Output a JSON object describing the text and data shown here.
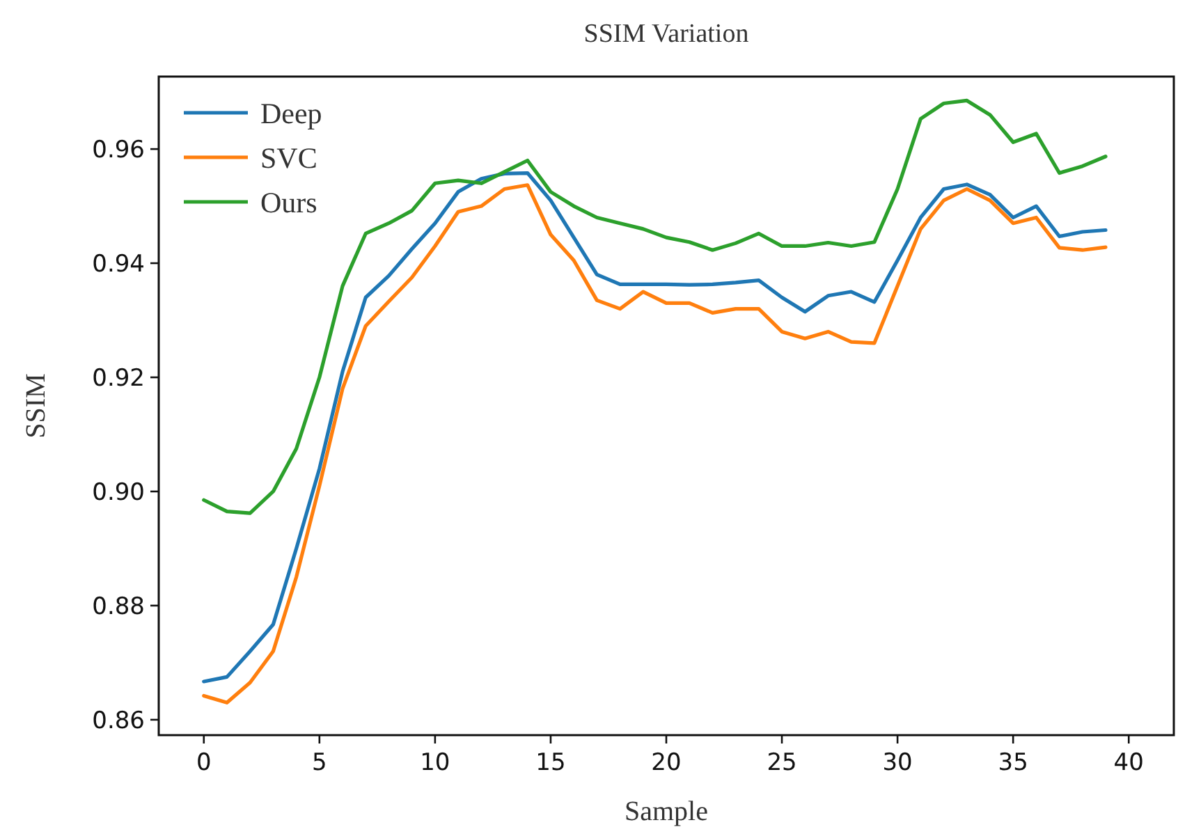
{
  "chart_data": {
    "type": "line",
    "title": "SSIM Variation",
    "xlabel": "Sample",
    "ylabel": "SSIM",
    "x": [
      0,
      1,
      2,
      3,
      4,
      5,
      6,
      7,
      8,
      9,
      10,
      11,
      12,
      13,
      14,
      15,
      16,
      17,
      18,
      19,
      20,
      21,
      22,
      23,
      24,
      25,
      26,
      27,
      28,
      29,
      30,
      31,
      32,
      33,
      34,
      35,
      36,
      37,
      38,
      39
    ],
    "series": [
      {
        "name": "Deep",
        "color": "#1f77b4",
        "values": [
          0.8667,
          0.8675,
          0.872,
          0.8767,
          0.89,
          0.904,
          0.921,
          0.934,
          0.9378,
          0.9425,
          0.947,
          0.9525,
          0.9548,
          0.9557,
          0.9558,
          0.951,
          0.9445,
          0.938,
          0.9363,
          0.9363,
          0.9363,
          0.9362,
          0.9363,
          0.9366,
          0.937,
          0.934,
          0.9315,
          0.9343,
          0.935,
          0.9332,
          0.9405,
          0.948,
          0.953,
          0.9538,
          0.952,
          0.948,
          0.95,
          0.9447,
          0.9455,
          0.9458
        ]
      },
      {
        "name": "SVC",
        "color": "#ff7f0e",
        "values": [
          0.8642,
          0.863,
          0.8665,
          0.872,
          0.885,
          0.901,
          0.918,
          0.929,
          0.9333,
          0.9375,
          0.943,
          0.949,
          0.95,
          0.953,
          0.9537,
          0.945,
          0.9405,
          0.9335,
          0.932,
          0.935,
          0.933,
          0.933,
          0.9313,
          0.932,
          0.932,
          0.928,
          0.9268,
          0.928,
          0.9262,
          0.926,
          0.936,
          0.946,
          0.951,
          0.953,
          0.951,
          0.947,
          0.948,
          0.9427,
          0.9423,
          0.9428
        ]
      },
      {
        "name": "Ours",
        "color": "#2ca02c",
        "values": [
          0.8985,
          0.8965,
          0.8962,
          0.9,
          0.9075,
          0.92,
          0.936,
          0.9452,
          0.947,
          0.9492,
          0.954,
          0.9545,
          0.954,
          0.956,
          0.958,
          0.9525,
          0.95,
          0.948,
          0.947,
          0.946,
          0.9445,
          0.9437,
          0.9423,
          0.9435,
          0.9452,
          0.943,
          0.943,
          0.9436,
          0.943,
          0.9437,
          0.953,
          0.9653,
          0.968,
          0.9685,
          0.966,
          0.9612,
          0.9627,
          0.9558,
          0.957,
          0.9587
        ]
      }
    ],
    "xlim": [
      -1.95,
      41.95
    ],
    "xticks": [
      0,
      5,
      10,
      15,
      20,
      25,
      30,
      35,
      40
    ],
    "ylim": [
      0.8573,
      0.9727
    ],
    "yticks": [
      0.86,
      0.88,
      {
        "value": 0.9,
        "label": "0.90"
      },
      0.92,
      0.94,
      0.96
    ],
    "legend": "top left",
    "grid": false
  }
}
